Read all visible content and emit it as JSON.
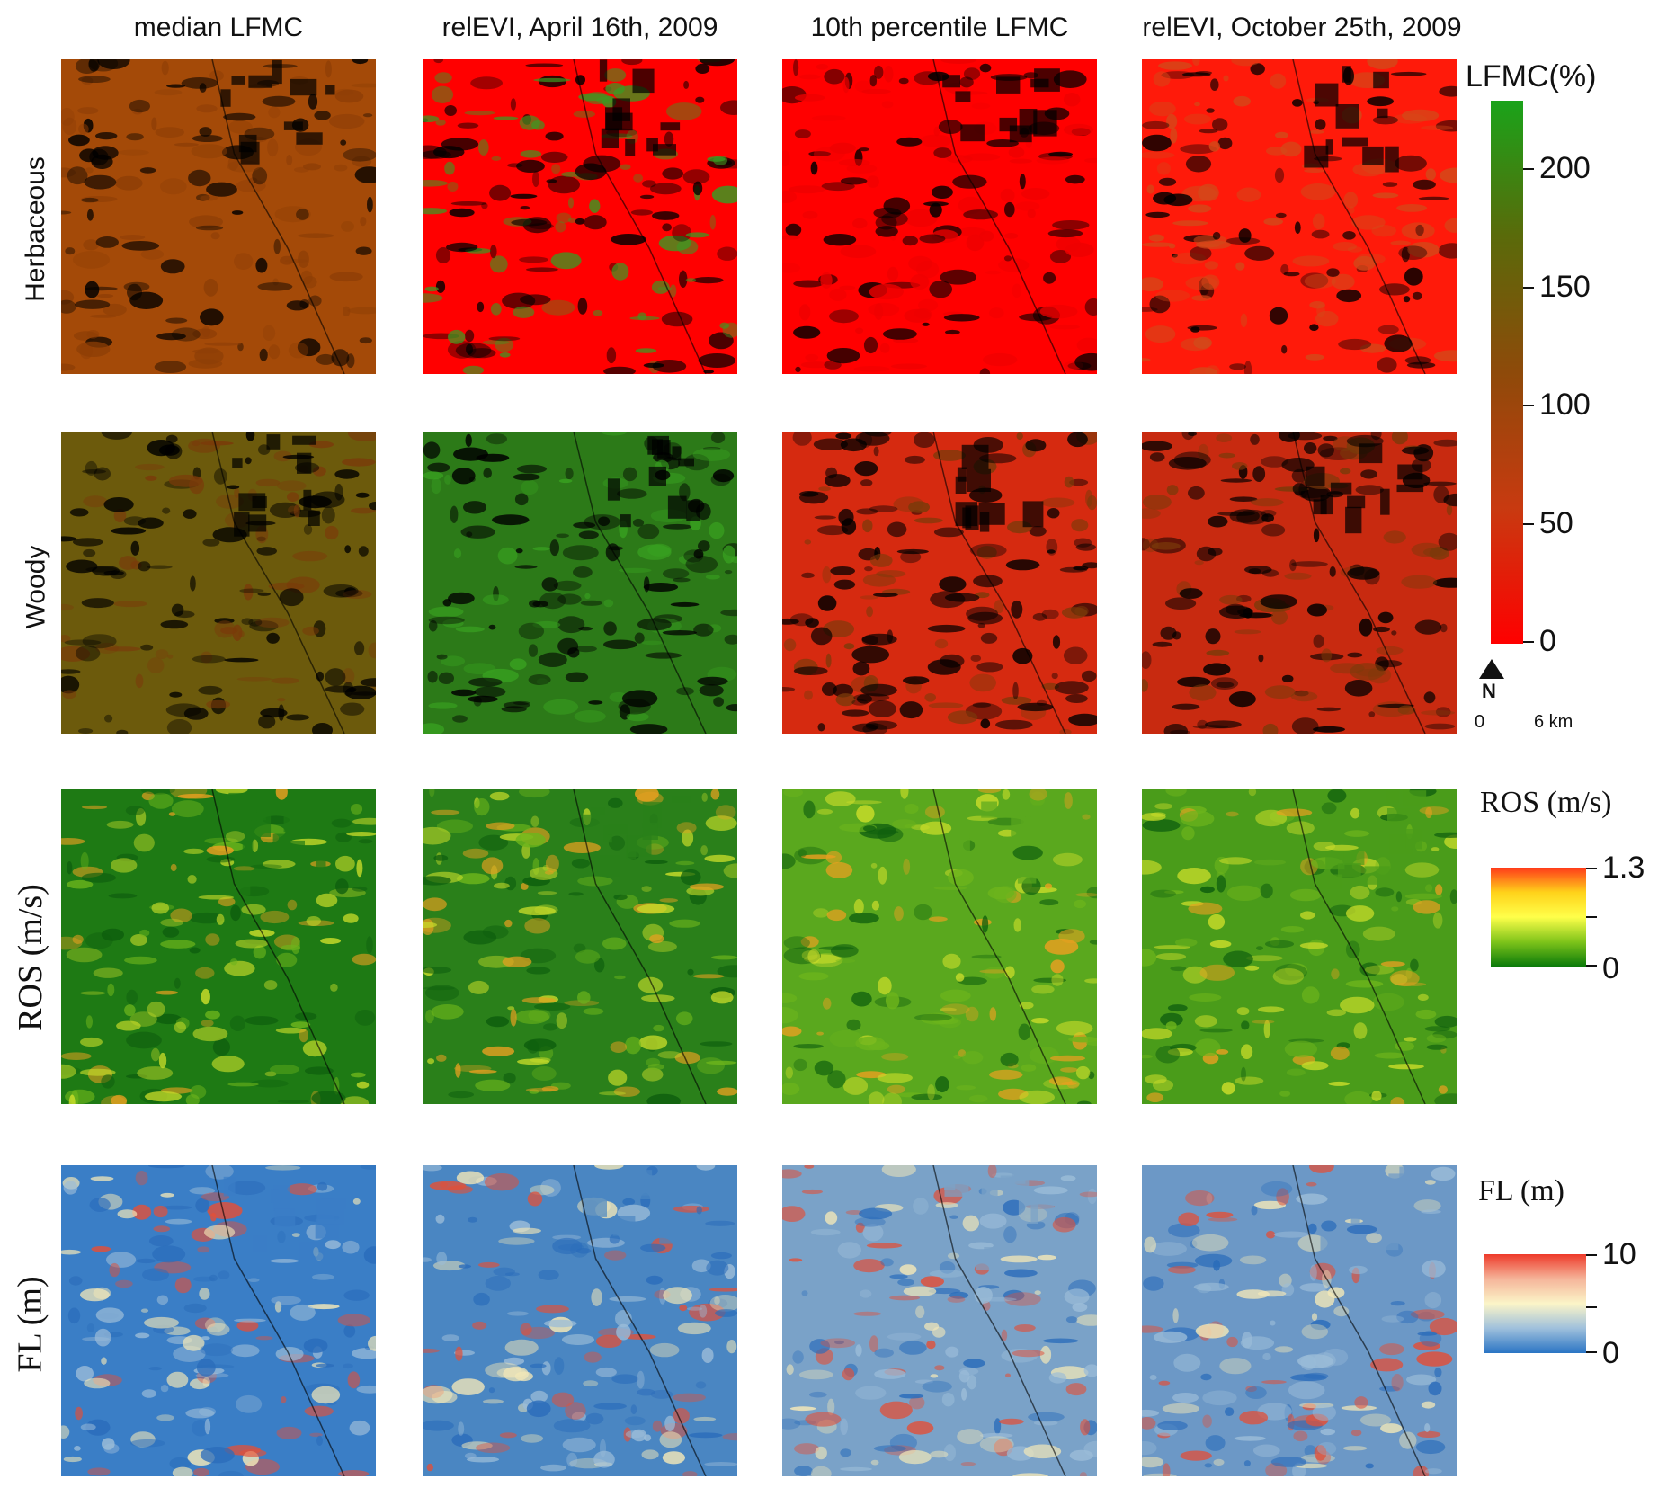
{
  "columns": [
    "median LFMC",
    "relEVI, April 16th, 2009",
    "10th percentile LFMC",
    "relEVI, October 25th, 2009"
  ],
  "rows": [
    "Herbaceous",
    "Woody",
    "ROS (m/s)",
    "FL (m)"
  ],
  "legends": {
    "lfmc": {
      "title": "LFMC(%)",
      "ticks": [
        "200",
        "150",
        "100",
        "50",
        "0"
      ],
      "colors": [
        "#1aa31a",
        "#5a6a0a",
        "#8e4a0a",
        "#c83a10",
        "#ff0000"
      ]
    },
    "ros": {
      "title": "ROS (m/s)",
      "ticks": [
        "1.3",
        "0"
      ],
      "colors": [
        "#ff3a1a",
        "#ffd21a",
        "#ffff4a",
        "#7fc41a",
        "#0a7a0a"
      ]
    },
    "fl": {
      "title": "FL (m)",
      "ticks": [
        "10",
        "0"
      ],
      "colors": [
        "#ee3a2a",
        "#f5b59a",
        "#fbf5c8",
        "#9fc0dc",
        "#2a74c4"
      ]
    }
  },
  "north_arrow": {
    "label": "N"
  },
  "scale_bar": {
    "start": "0",
    "end": "6 km"
  },
  "panel_colors": {
    "herbaceous": [
      "#a44a08",
      "#ff0000",
      "#ff0000",
      "#ff1a0a"
    ],
    "herbaceous_accent": [
      "#8e3e06",
      "#3a9a22",
      "#ee0000",
      "#d24a1a"
    ],
    "woody": [
      "#6c5a0c",
      "#2c7a18",
      "#d62a10",
      "#c82a10"
    ],
    "ros": [
      "#1e7a14",
      "#2a801a",
      "#5aa81e",
      "#4a9c1a"
    ],
    "fl": [
      "#3a7ec6",
      "#4a86c2",
      "#7aa2c8",
      "#6c98c6"
    ]
  }
}
